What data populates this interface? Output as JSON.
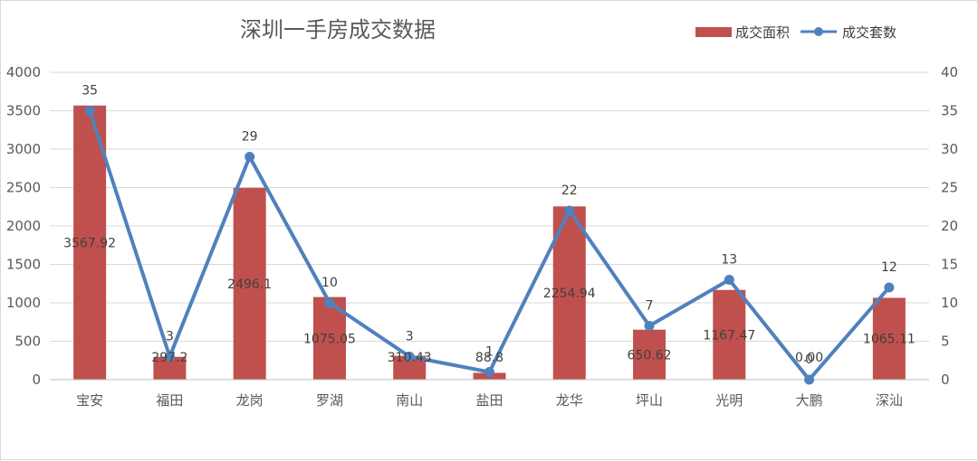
{
  "chart_data": {
    "type": "bar+line",
    "title": "深圳一手房成交数据",
    "categories": [
      "宝安",
      "福田",
      "龙岗",
      "罗湖",
      "南山",
      "盐田",
      "龙华",
      "坪山",
      "光明",
      "大鹏",
      "深汕"
    ],
    "series": [
      {
        "name": "成交面积",
        "type": "bar",
        "axis": "left",
        "color": "#c0504d",
        "values": [
          3567.92,
          297.2,
          2496.1,
          1075.05,
          310.43,
          88.8,
          2254.94,
          650.62,
          1167.47,
          0.0,
          1065.11
        ],
        "labels": [
          "3567.92",
          "297.2",
          "2496.1",
          "1075.05",
          "310.43",
          "88.8",
          "2254.94",
          "650.62",
          "1167.47",
          "0.00",
          "1065.11"
        ]
      },
      {
        "name": "成交套数",
        "type": "line",
        "axis": "right",
        "color": "#4f81bd",
        "values": [
          35,
          3,
          29,
          10,
          3,
          1,
          22,
          7,
          13,
          0,
          12
        ],
        "labels": [
          "35",
          "3",
          "29",
          "10",
          "3",
          "1",
          "22",
          "7",
          "13",
          "0",
          "12"
        ]
      }
    ],
    "y_left": {
      "min": 0,
      "max": 4000,
      "step": 500,
      "ticks": [
        "0",
        "500",
        "1000",
        "1500",
        "2000",
        "2500",
        "3000",
        "3500",
        "4000"
      ]
    },
    "y_right": {
      "min": 0,
      "max": 40,
      "step": 5,
      "ticks": [
        "0",
        "5",
        "10",
        "15",
        "20",
        "25",
        "30",
        "35",
        "40"
      ]
    },
    "grid": true,
    "legend": "top-right"
  }
}
